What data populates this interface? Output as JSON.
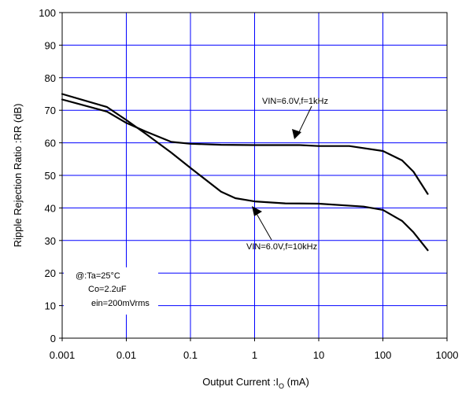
{
  "chart_data": {
    "type": "line",
    "xscale": "log",
    "xlim": [
      0.001,
      1000
    ],
    "ylim": [
      0,
      100
    ],
    "grid": true,
    "xticks": [
      "0.001",
      "0.01",
      "0.1",
      "1",
      "10",
      "100",
      "1000"
    ],
    "yticks": [
      "0",
      "10",
      "20",
      "30",
      "40",
      "50",
      "60",
      "70",
      "80",
      "90",
      "100"
    ],
    "xlabel_main": "Output Current :I",
    "xlabel_sub": "O",
    "xlabel_unit": " (mA)",
    "ylabel": "Ripple Rejection Ratio :RR (dB)",
    "series": [
      {
        "name": "VIN=6.0V,f=1kHz",
        "x": [
          0.001,
          0.005,
          0.01,
          0.02,
          0.05,
          0.1,
          0.3,
          1,
          5,
          10,
          30,
          100,
          200,
          300,
          500
        ],
        "y": [
          73.3,
          69.6,
          66.1,
          63.5,
          60.3,
          59.7,
          59.4,
          59.3,
          59.3,
          59.0,
          59.0,
          57.5,
          54.6,
          51.1,
          44.3
        ]
      },
      {
        "name": "VIN=6.0V,f=10kHz",
        "x": [
          0.001,
          0.005,
          0.01,
          0.02,
          0.05,
          0.1,
          0.3,
          0.5,
          1,
          3,
          10,
          50,
          100,
          200,
          300,
          500
        ],
        "y": [
          75.0,
          71.0,
          67.0,
          62.8,
          57.0,
          52.3,
          45.0,
          43.0,
          42.0,
          41.4,
          41.3,
          40.4,
          39.4,
          36.0,
          32.5,
          27.0
        ]
      }
    ],
    "conditions": [
      "@:Ta=25°C",
      "Co=2.2uF",
      "ein=200mVrms"
    ]
  },
  "colors": {
    "grid": "#0000ff",
    "line": "#000000"
  }
}
